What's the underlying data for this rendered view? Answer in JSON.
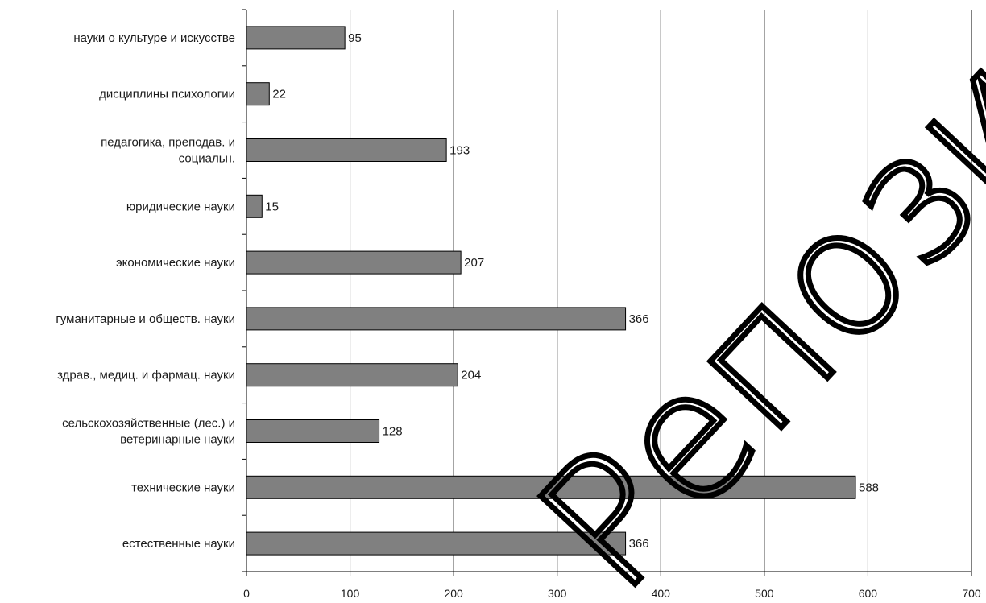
{
  "chart_data": {
    "type": "bar",
    "orientation": "horizontal",
    "categories": [
      "науки о культуре и искусстве",
      "дисциплины психологии",
      "педагогика, преподав. и социальн.",
      "юридические науки",
      "экономические науки",
      "гуманитарные и обществ. науки",
      "здрав., медиц. и фармац. науки",
      "сельскохозяйственные (лес.) и ветеринарные науки",
      "технические науки",
      "естественные науки"
    ],
    "category_label_lines": [
      [
        "науки о культуре и искусстве"
      ],
      [
        "дисциплины психологии"
      ],
      [
        "педагогика, преподав. и",
        "социальн."
      ],
      [
        "юридические науки"
      ],
      [
        "экономические науки"
      ],
      [
        "гуманитарные и обществ. науки"
      ],
      [
        "здрав., медиц. и фармац. науки"
      ],
      [
        "сельскохозяйственные (лес.) и",
        "ветеринарные науки"
      ],
      [
        "технические науки"
      ],
      [
        "естественные науки"
      ]
    ],
    "values": [
      95,
      22,
      193,
      15,
      207,
      366,
      204,
      128,
      588,
      366
    ],
    "xlim": [
      0,
      700
    ],
    "x_ticks": [
      0,
      100,
      200,
      300,
      400,
      500,
      600,
      700
    ],
    "title": "",
    "xlabel": "",
    "ylabel": "",
    "grid": "vertical",
    "legend": "none",
    "data_labels": true,
    "colors": {
      "bar_fill": "#808080",
      "bar_stroke": "#000000",
      "grid": "#000000",
      "watermark": "#000000"
    }
  },
  "watermark": {
    "text": "Репозиторий ВГУ"
  }
}
